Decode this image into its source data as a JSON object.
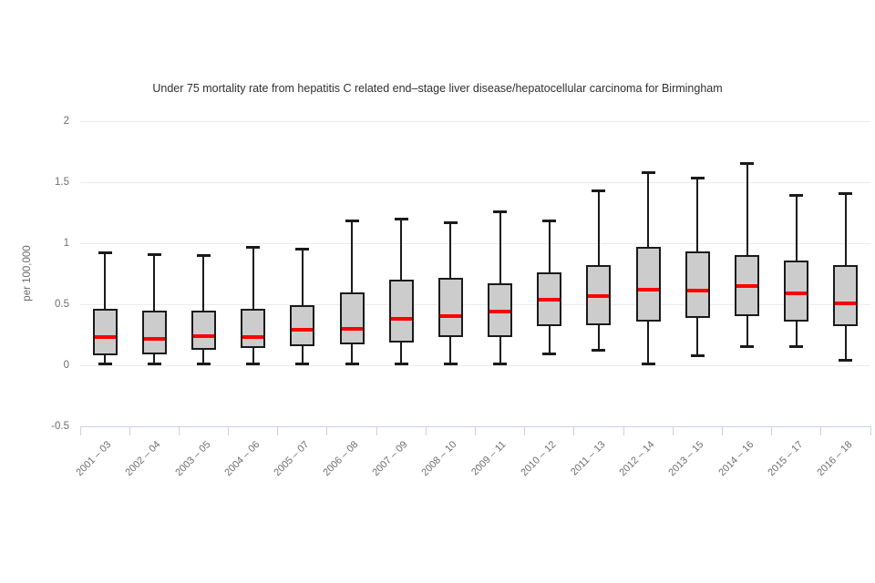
{
  "page": {
    "background": "#ffffff"
  },
  "chart_data": {
    "type": "boxplot",
    "title": "Under 75 mortality rate from hepatitis C related end–stage liver disease/hepatocellular carcinoma for Birmingham",
    "xlabel": "",
    "ylabel": "per 100,000",
    "ylim": [
      -0.5,
      2
    ],
    "grid": true,
    "legend": "none",
    "grid_values": [
      2,
      1.5,
      1,
      0.5,
      0
    ],
    "yticks": [
      {
        "value": 2,
        "label": "2"
      },
      {
        "value": 1.5,
        "label": "1.5"
      },
      {
        "value": 1,
        "label": "1"
      },
      {
        "value": 0.5,
        "label": "0.5"
      },
      {
        "value": 0,
        "label": "0"
      },
      {
        "value": -0.5,
        "label": "-0.5"
      }
    ],
    "categories": [
      "2001 – 03",
      "2002 – 04",
      "2003 – 05",
      "2004 – 06",
      "2005 – 07",
      "2006 – 08",
      "2007 – 09",
      "2008 – 10",
      "2009 – 11",
      "2010 – 12",
      "2011 – 13",
      "2012 – 14",
      "2013 – 15",
      "2014 – 16",
      "2015 – 17",
      "2016 – 18"
    ],
    "series": [
      {
        "name": "Birmingham",
        "points": [
          {
            "low": 0.01,
            "q1": 0.08,
            "median": 0.23,
            "q3": 0.46,
            "high": 0.92
          },
          {
            "low": 0.01,
            "q1": 0.09,
            "median": 0.22,
            "q3": 0.45,
            "high": 0.91
          },
          {
            "low": 0.01,
            "q1": 0.13,
            "median": 0.24,
            "q3": 0.45,
            "high": 0.9
          },
          {
            "low": 0.01,
            "q1": 0.14,
            "median": 0.23,
            "q3": 0.46,
            "high": 0.97
          },
          {
            "low": 0.01,
            "q1": 0.16,
            "median": 0.29,
            "q3": 0.49,
            "high": 0.95
          },
          {
            "low": 0.01,
            "q1": 0.17,
            "median": 0.3,
            "q3": 0.6,
            "high": 1.18
          },
          {
            "low": 0.01,
            "q1": 0.19,
            "median": 0.38,
            "q3": 0.7,
            "high": 1.2
          },
          {
            "low": 0.01,
            "q1": 0.23,
            "median": 0.4,
            "q3": 0.72,
            "high": 1.17
          },
          {
            "low": 0.01,
            "q1": 0.23,
            "median": 0.44,
            "q3": 0.67,
            "high": 1.26
          },
          {
            "low": 0.09,
            "q1": 0.32,
            "median": 0.54,
            "q3": 0.76,
            "high": 1.18
          },
          {
            "low": 0.12,
            "q1": 0.33,
            "median": 0.57,
            "q3": 0.82,
            "high": 1.43
          },
          {
            "low": 0.01,
            "q1": 0.36,
            "median": 0.62,
            "q3": 0.97,
            "high": 1.58
          },
          {
            "low": 0.08,
            "q1": 0.39,
            "median": 0.61,
            "q3": 0.93,
            "high": 1.53
          },
          {
            "low": 0.15,
            "q1": 0.4,
            "median": 0.65,
            "q3": 0.9,
            "high": 1.65
          },
          {
            "low": 0.15,
            "q1": 0.36,
            "median": 0.59,
            "q3": 0.86,
            "high": 1.39
          },
          {
            "low": 0.04,
            "q1": 0.32,
            "median": 0.51,
            "q3": 0.82,
            "high": 1.41
          }
        ]
      }
    ],
    "colors": {
      "box_fill": "#cccccc",
      "box_border": "#1a1a1a",
      "median": "#ff0000",
      "whisker": "#1a1a1a",
      "gridline": "#ebebeb",
      "axis": "#c8d2e4",
      "tick_label": "#6e6e6e",
      "title_text": "#2f2f2f"
    }
  }
}
